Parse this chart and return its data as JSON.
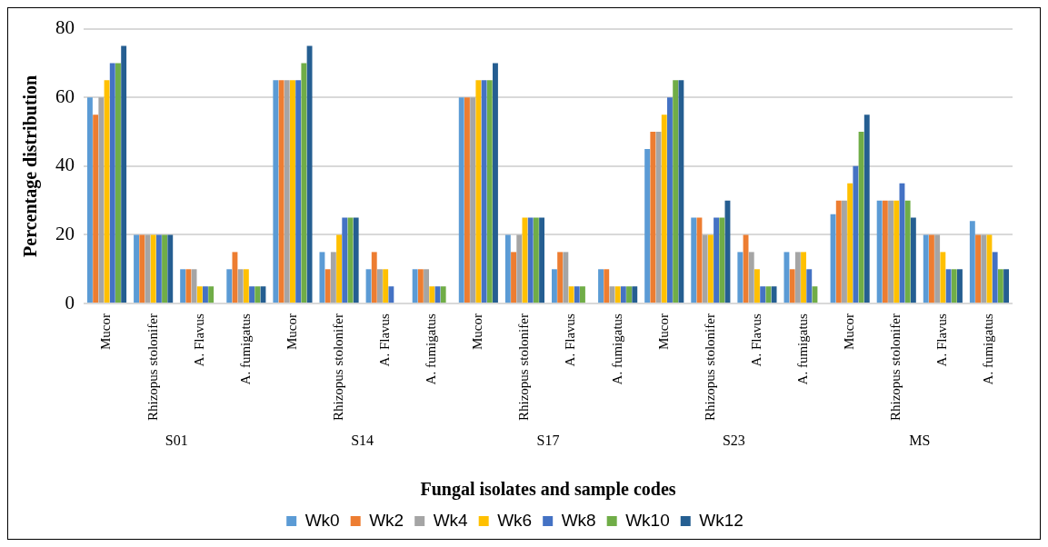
{
  "chart_data": {
    "type": "bar",
    "xlabel": "Fungal isolates and sample codes",
    "ylabel": "Percentage distribution",
    "categories": [
      "Mucor",
      "Rhizopus stolonifer",
      "A. Flavus",
      "A. fumigatus",
      "Mucor",
      "Rhizopus stolonifer",
      "A. Flavus",
      "A. fumigatus",
      "Mucor",
      "Rhizopus stolonifer",
      "A. Flavus",
      "A. fumigatus",
      "Mucor",
      "Rhizopus stolonifer",
      "A. Flavus",
      "A. fumigatus",
      "Mucor",
      "Rhizopus stolonifer",
      "A. Flavus",
      "A. fumigatus"
    ],
    "annotations": [
      "S01",
      "S14",
      "S17",
      "S23",
      "MS"
    ],
    "series": [
      {
        "name": "Wk0",
        "color": "#5b9bd5",
        "values": [
          60,
          20,
          10,
          10,
          65,
          15,
          10,
          10,
          60,
          20,
          10,
          10,
          45,
          25,
          15,
          15,
          26,
          30,
          20,
          24
        ]
      },
      {
        "name": "Wk2",
        "color": "#ed7d31",
        "values": [
          55,
          20,
          10,
          15,
          65,
          10,
          15,
          10,
          60,
          15,
          15,
          10,
          50,
          25,
          20,
          10,
          30,
          30,
          20,
          20
        ]
      },
      {
        "name": "Wk4",
        "color": "#a5a5a5",
        "values": [
          60,
          20,
          10,
          10,
          65,
          15,
          10,
          10,
          60,
          20,
          15,
          5,
          50,
          20,
          15,
          15,
          30,
          30,
          20,
          20
        ]
      },
      {
        "name": "Wk6",
        "color": "#ffc000",
        "values": [
          65,
          20,
          5,
          10,
          65,
          20,
          10,
          5,
          65,
          25,
          5,
          5,
          55,
          20,
          10,
          15,
          35,
          30,
          15,
          20
        ]
      },
      {
        "name": "Wk8",
        "color": "#4472c4",
        "values": [
          70,
          20,
          5,
          5,
          65,
          25,
          5,
          5,
          65,
          25,
          5,
          5,
          60,
          25,
          5,
          10,
          40,
          35,
          10,
          15
        ]
      },
      {
        "name": "Wk10",
        "color": "#70ad47",
        "values": [
          70,
          20,
          5,
          5,
          70,
          25,
          0,
          5,
          65,
          25,
          5,
          5,
          65,
          25,
          5,
          5,
          50,
          30,
          10,
          10
        ]
      },
      {
        "name": "Wk12",
        "color": "#255e91",
        "values": [
          75,
          20,
          0,
          5,
          75,
          25,
          0,
          0,
          70,
          25,
          0,
          5,
          65,
          30,
          5,
          0,
          55,
          25,
          10,
          10
        ]
      }
    ],
    "ylim": [
      0,
      80
    ],
    "yticks": [
      0,
      20,
      40,
      60,
      80
    ],
    "grid": "y",
    "legend": "bottom"
  }
}
